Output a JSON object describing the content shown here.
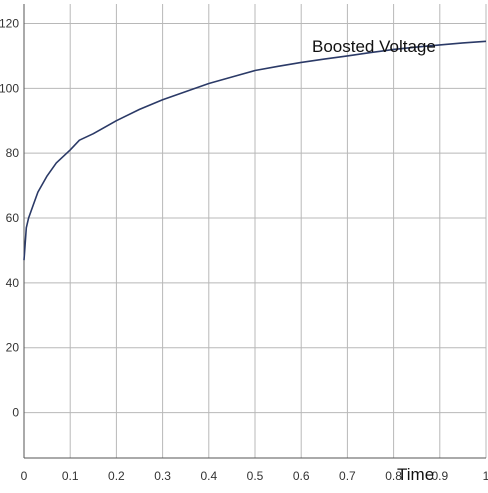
{
  "chart_data": {
    "type": "line",
    "title": "",
    "xlabel": "Time",
    "ylabel": "",
    "xlim": [
      0,
      1
    ],
    "ylim": [
      -14,
      126
    ],
    "grid": true,
    "x_ticks": [
      0,
      0.1,
      0.2,
      0.3,
      0.4,
      0.5,
      0.6,
      0.7,
      0.8,
      0.9,
      1
    ],
    "x_tick_labels": [
      "0",
      "0.1",
      "0.2",
      "0.3",
      "0.4",
      "0.5",
      "0.6",
      "0.7",
      "0.8",
      "0.9",
      "1"
    ],
    "y_ticks": [
      0,
      20,
      40,
      60,
      80,
      100,
      120
    ],
    "y_tick_labels": [
      "0",
      "20",
      "40",
      "60",
      "80",
      "100",
      "120"
    ],
    "annotation": "Boosted Voltage",
    "colors": {
      "line": "#2b3a67",
      "grid": "#b8b8b8",
      "axis": "#555555"
    },
    "series": [
      {
        "name": "",
        "x": [
          0,
          0.005,
          0.01,
          0.02,
          0.03,
          0.05,
          0.07,
          0.1,
          0.12,
          0.15,
          0.2,
          0.25,
          0.3,
          0.35,
          0.4,
          0.45,
          0.5,
          0.55,
          0.6,
          0.65,
          0.7,
          0.75,
          0.8,
          0.85,
          0.9,
          0.95,
          1.0
        ],
        "y": [
          47,
          57,
          60,
          64,
          68,
          73,
          77,
          81,
          84,
          86,
          90,
          93.5,
          96.5,
          99,
          101.5,
          103.5,
          105.5,
          106.8,
          108,
          109,
          110,
          111,
          112,
          112.7,
          113.4,
          114,
          114.5
        ]
      }
    ]
  }
}
